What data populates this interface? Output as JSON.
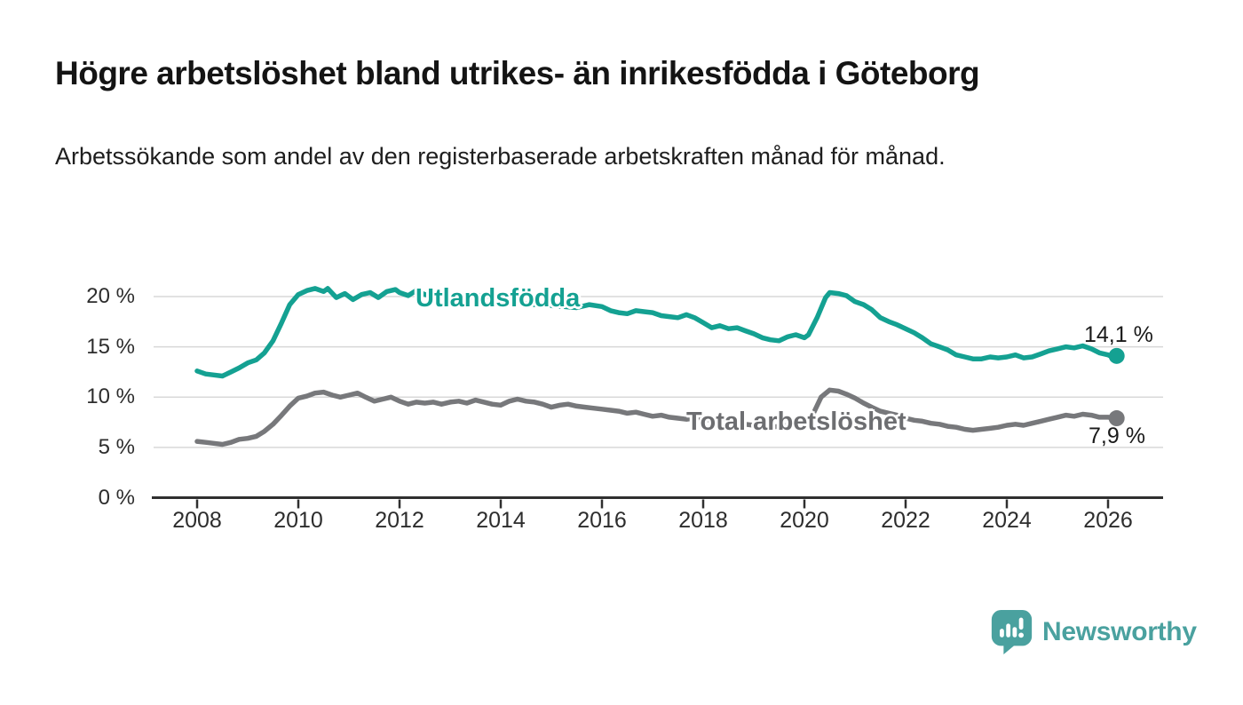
{
  "header": {
    "title": "Högre arbetslöshet bland utrikes- än inrikesfödda i Göteborg",
    "subtitle": "Arbetssökande som andel av den registerbaserade arbetskraften månad för månad."
  },
  "chart_data": {
    "type": "line",
    "title": "Högre arbetslöshet bland utrikes- än inrikesfödda i Göteborg",
    "subtitle": "Arbetssökande som andel av den registerbaserade arbetskraften månad för månad.",
    "grid": true,
    "x_axis": {
      "ticks": [
        2008,
        2010,
        2012,
        2014,
        2016,
        2018,
        2020,
        2022,
        2024,
        2026
      ],
      "range": [
        2007.15,
        2027.05
      ]
    },
    "y_axis": {
      "unit": "%",
      "range": [
        0,
        22
      ],
      "ticks": [
        {
          "value": 0,
          "label": "0 %"
        },
        {
          "value": 5,
          "label": "5 %"
        },
        {
          "value": 10,
          "label": "10 %"
        },
        {
          "value": 15,
          "label": "15 %"
        },
        {
          "value": 20,
          "label": "20 %"
        }
      ]
    },
    "colors": {
      "axis": "#2f2f2f",
      "gridline": "#d8d8d8",
      "tick_text": "#2d2d2d"
    },
    "series": [
      {
        "name": "Utlandsfödda",
        "color": "#14a192",
        "end_label": "14,1 %",
        "end_value": 14.1,
        "points": [
          [
            2008.0,
            12.6
          ],
          [
            2008.17,
            12.3
          ],
          [
            2008.33,
            12.2
          ],
          [
            2008.5,
            12.1
          ],
          [
            2008.67,
            12.5
          ],
          [
            2008.83,
            12.9
          ],
          [
            2009.0,
            13.4
          ],
          [
            2009.17,
            13.7
          ],
          [
            2009.33,
            14.4
          ],
          [
            2009.5,
            15.6
          ],
          [
            2009.67,
            17.4
          ],
          [
            2009.83,
            19.2
          ],
          [
            2010.0,
            20.2
          ],
          [
            2010.17,
            20.6
          ],
          [
            2010.33,
            20.8
          ],
          [
            2010.5,
            20.5
          ],
          [
            2010.58,
            20.8
          ],
          [
            2010.75,
            19.9
          ],
          [
            2010.92,
            20.3
          ],
          [
            2011.08,
            19.7
          ],
          [
            2011.25,
            20.2
          ],
          [
            2011.42,
            20.4
          ],
          [
            2011.58,
            19.9
          ],
          [
            2011.75,
            20.5
          ],
          [
            2011.92,
            20.7
          ],
          [
            2012.0,
            20.4
          ],
          [
            2012.17,
            20.1
          ],
          [
            2012.33,
            20.6
          ],
          [
            2012.5,
            20.2
          ],
          [
            2012.67,
            20.0
          ],
          [
            2012.83,
            19.9
          ],
          [
            2013.0,
            20.0
          ],
          [
            2013.17,
            19.8
          ],
          [
            2013.33,
            20.0
          ],
          [
            2013.5,
            19.9
          ],
          [
            2013.67,
            20.2
          ],
          [
            2013.83,
            19.8
          ],
          [
            2014.0,
            19.7
          ],
          [
            2014.17,
            19.5
          ],
          [
            2014.33,
            19.6
          ],
          [
            2014.5,
            19.3
          ],
          [
            2014.67,
            19.2
          ],
          [
            2014.83,
            19.3
          ],
          [
            2015.0,
            19.1
          ],
          [
            2015.25,
            19.0
          ],
          [
            2015.5,
            18.9
          ],
          [
            2015.75,
            19.2
          ],
          [
            2016.0,
            19.0
          ],
          [
            2016.17,
            18.6
          ],
          [
            2016.33,
            18.4
          ],
          [
            2016.5,
            18.3
          ],
          [
            2016.67,
            18.6
          ],
          [
            2016.83,
            18.5
          ],
          [
            2017.0,
            18.4
          ],
          [
            2017.17,
            18.1
          ],
          [
            2017.33,
            18.0
          ],
          [
            2017.5,
            17.9
          ],
          [
            2017.67,
            18.2
          ],
          [
            2017.83,
            17.9
          ],
          [
            2018.0,
            17.4
          ],
          [
            2018.17,
            16.9
          ],
          [
            2018.33,
            17.1
          ],
          [
            2018.5,
            16.8
          ],
          [
            2018.67,
            16.9
          ],
          [
            2018.83,
            16.6
          ],
          [
            2019.0,
            16.3
          ],
          [
            2019.17,
            15.9
          ],
          [
            2019.33,
            15.7
          ],
          [
            2019.5,
            15.6
          ],
          [
            2019.67,
            16.0
          ],
          [
            2019.83,
            16.2
          ],
          [
            2020.0,
            15.9
          ],
          [
            2020.08,
            16.2
          ],
          [
            2020.25,
            17.9
          ],
          [
            2020.42,
            19.9
          ],
          [
            2020.5,
            20.4
          ],
          [
            2020.67,
            20.3
          ],
          [
            2020.83,
            20.1
          ],
          [
            2021.0,
            19.5
          ],
          [
            2021.17,
            19.2
          ],
          [
            2021.33,
            18.7
          ],
          [
            2021.5,
            17.9
          ],
          [
            2021.67,
            17.5
          ],
          [
            2021.83,
            17.2
          ],
          [
            2022.0,
            16.8
          ],
          [
            2022.17,
            16.4
          ],
          [
            2022.33,
            15.9
          ],
          [
            2022.5,
            15.3
          ],
          [
            2022.67,
            15.0
          ],
          [
            2022.83,
            14.7
          ],
          [
            2023.0,
            14.2
          ],
          [
            2023.17,
            14.0
          ],
          [
            2023.33,
            13.8
          ],
          [
            2023.5,
            13.8
          ],
          [
            2023.67,
            14.0
          ],
          [
            2023.83,
            13.9
          ],
          [
            2024.0,
            14.0
          ],
          [
            2024.17,
            14.2
          ],
          [
            2024.33,
            13.9
          ],
          [
            2024.5,
            14.0
          ],
          [
            2024.67,
            14.3
          ],
          [
            2024.83,
            14.6
          ],
          [
            2025.0,
            14.8
          ],
          [
            2025.17,
            15.0
          ],
          [
            2025.33,
            14.9
          ],
          [
            2025.5,
            15.1
          ],
          [
            2025.67,
            14.8
          ],
          [
            2025.83,
            14.4
          ],
          [
            2026.0,
            14.2
          ],
          [
            2026.08,
            14.0
          ],
          [
            2026.17,
            14.1
          ]
        ]
      },
      {
        "name": "Total arbetslöshet",
        "color": "#77787b",
        "label_color": "#6d6e71",
        "end_label": "7,9 %",
        "end_value": 7.9,
        "points": [
          [
            2008.0,
            5.6
          ],
          [
            2008.17,
            5.5
          ],
          [
            2008.33,
            5.4
          ],
          [
            2008.5,
            5.3
          ],
          [
            2008.67,
            5.5
          ],
          [
            2008.83,
            5.8
          ],
          [
            2009.0,
            5.9
          ],
          [
            2009.17,
            6.1
          ],
          [
            2009.33,
            6.6
          ],
          [
            2009.5,
            7.3
          ],
          [
            2009.67,
            8.2
          ],
          [
            2009.83,
            9.1
          ],
          [
            2010.0,
            9.9
          ],
          [
            2010.17,
            10.1
          ],
          [
            2010.33,
            10.4
          ],
          [
            2010.5,
            10.5
          ],
          [
            2010.67,
            10.2
          ],
          [
            2010.83,
            10.0
          ],
          [
            2011.0,
            10.2
          ],
          [
            2011.17,
            10.4
          ],
          [
            2011.33,
            10.0
          ],
          [
            2011.5,
            9.6
          ],
          [
            2011.67,
            9.8
          ],
          [
            2011.83,
            10.0
          ],
          [
            2012.0,
            9.6
          ],
          [
            2012.17,
            9.3
          ],
          [
            2012.33,
            9.5
          ],
          [
            2012.5,
            9.4
          ],
          [
            2012.67,
            9.5
          ],
          [
            2012.83,
            9.3
          ],
          [
            2013.0,
            9.5
          ],
          [
            2013.17,
            9.6
          ],
          [
            2013.33,
            9.4
          ],
          [
            2013.5,
            9.7
          ],
          [
            2013.67,
            9.5
          ],
          [
            2013.83,
            9.3
          ],
          [
            2014.0,
            9.2
          ],
          [
            2014.17,
            9.6
          ],
          [
            2014.33,
            9.8
          ],
          [
            2014.5,
            9.6
          ],
          [
            2014.67,
            9.5
          ],
          [
            2014.83,
            9.3
          ],
          [
            2015.0,
            9.0
          ],
          [
            2015.17,
            9.2
          ],
          [
            2015.33,
            9.3
          ],
          [
            2015.5,
            9.1
          ],
          [
            2015.67,
            9.0
          ],
          [
            2015.83,
            8.9
          ],
          [
            2016.0,
            8.8
          ],
          [
            2016.17,
            8.7
          ],
          [
            2016.33,
            8.6
          ],
          [
            2016.5,
            8.4
          ],
          [
            2016.67,
            8.5
          ],
          [
            2016.83,
            8.3
          ],
          [
            2017.0,
            8.1
          ],
          [
            2017.17,
            8.2
          ],
          [
            2017.33,
            8.0
          ],
          [
            2017.5,
            7.9
          ],
          [
            2017.67,
            7.8
          ],
          [
            2017.83,
            7.9
          ],
          [
            2018.0,
            7.8
          ],
          [
            2018.17,
            7.7
          ],
          [
            2018.33,
            7.6
          ],
          [
            2018.5,
            7.5
          ],
          [
            2018.67,
            7.4
          ],
          [
            2018.83,
            7.3
          ],
          [
            2019.0,
            7.2
          ],
          [
            2019.17,
            7.1
          ],
          [
            2019.33,
            7.0
          ],
          [
            2019.5,
            7.1
          ],
          [
            2019.67,
            7.2
          ],
          [
            2019.83,
            7.3
          ],
          [
            2020.0,
            7.4
          ],
          [
            2020.17,
            8.3
          ],
          [
            2020.33,
            10.0
          ],
          [
            2020.5,
            10.7
          ],
          [
            2020.67,
            10.6
          ],
          [
            2020.83,
            10.3
          ],
          [
            2021.0,
            9.9
          ],
          [
            2021.17,
            9.4
          ],
          [
            2021.33,
            9.0
          ],
          [
            2021.5,
            8.6
          ],
          [
            2021.67,
            8.4
          ],
          [
            2021.83,
            8.2
          ],
          [
            2022.0,
            7.9
          ],
          [
            2022.17,
            7.7
          ],
          [
            2022.33,
            7.6
          ],
          [
            2022.5,
            7.4
          ],
          [
            2022.67,
            7.3
          ],
          [
            2022.83,
            7.1
          ],
          [
            2023.0,
            7.0
          ],
          [
            2023.17,
            6.8
          ],
          [
            2023.33,
            6.7
          ],
          [
            2023.5,
            6.8
          ],
          [
            2023.67,
            6.9
          ],
          [
            2023.83,
            7.0
          ],
          [
            2024.0,
            7.2
          ],
          [
            2024.17,
            7.3
          ],
          [
            2024.33,
            7.2
          ],
          [
            2024.5,
            7.4
          ],
          [
            2024.67,
            7.6
          ],
          [
            2024.83,
            7.8
          ],
          [
            2025.0,
            8.0
          ],
          [
            2025.17,
            8.2
          ],
          [
            2025.33,
            8.1
          ],
          [
            2025.5,
            8.3
          ],
          [
            2025.67,
            8.2
          ],
          [
            2025.83,
            8.0
          ],
          [
            2026.0,
            8.0
          ],
          [
            2026.17,
            7.9
          ]
        ]
      }
    ]
  },
  "footer": {
    "brand": "Newsworthy",
    "brand_color": "#4aa19f",
    "logo_icon": "newsworthy-speech-bubble-bar-chart-icon"
  }
}
